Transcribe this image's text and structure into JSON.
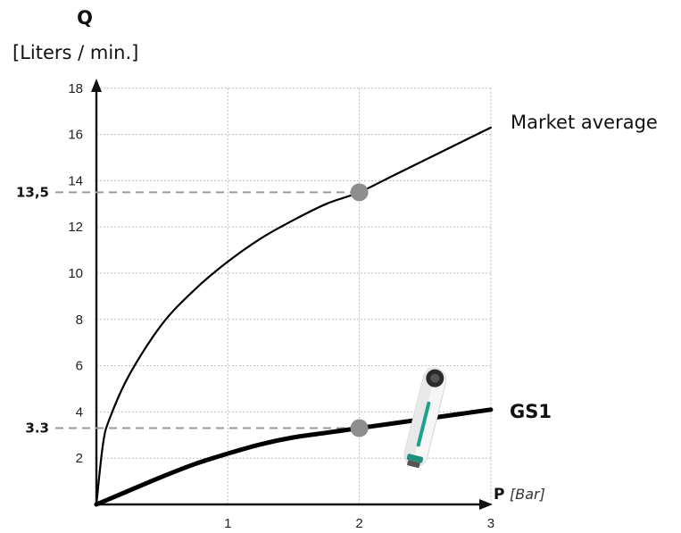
{
  "chart_data": {
    "type": "line",
    "y_title": "Q",
    "y_unit": "[Liters / min.]",
    "x_title": "P",
    "x_unit": "[Bar]",
    "xlim": [
      0,
      3
    ],
    "ylim": [
      0,
      18
    ],
    "x_ticks": [
      "1",
      "2",
      "3"
    ],
    "y_ticks": [
      "2",
      "4",
      "6",
      "8",
      "10",
      "12",
      "14",
      "16",
      "18"
    ],
    "grid": true,
    "series": [
      {
        "name": "Market average",
        "x": [
          0,
          0.05,
          0.1,
          0.25,
          0.5,
          0.75,
          1,
          1.25,
          1.5,
          1.75,
          2,
          2.25,
          2.5,
          2.75,
          3
        ],
        "y": [
          0,
          2.6,
          3.7,
          5.6,
          7.8,
          9.3,
          10.5,
          11.5,
          12.3,
          13.0,
          13.5,
          14.2,
          14.9,
          15.6,
          16.3
        ],
        "color": "#000000"
      },
      {
        "name": "GS1",
        "x": [
          0,
          0.25,
          0.5,
          0.75,
          1,
          1.25,
          1.5,
          1.75,
          2,
          2.25,
          2.5,
          2.75,
          3
        ],
        "y": [
          0,
          0.6,
          1.2,
          1.75,
          2.2,
          2.6,
          2.9,
          3.1,
          3.3,
          3.5,
          3.7,
          3.9,
          4.1
        ],
        "color": "#000000"
      }
    ],
    "reference_points": [
      {
        "x": 2,
        "y": 13.5,
        "label": "13,5"
      },
      {
        "x": 2,
        "y": 3.3,
        "label": "3.3"
      }
    ],
    "marker_color": "#8e8e8e",
    "grid_color": "#bdbdbd"
  }
}
